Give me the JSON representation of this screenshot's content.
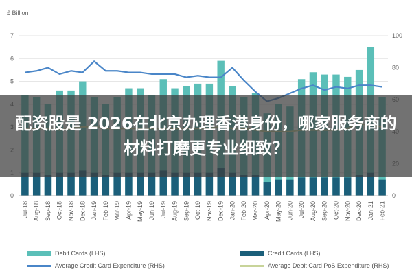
{
  "banner": {
    "text": "配资股是 2026在北京办理香港身份，哪家服务商的材料打磨更专业细致？"
  },
  "chart_data": {
    "type": "bar",
    "ylabel": "£ Billion",
    "ylim": [
      0,
      7
    ],
    "y2lim": [
      0,
      100
    ],
    "yticks": [
      0,
      1,
      2,
      3,
      4,
      5,
      6,
      7
    ],
    "y2ticks": [
      0,
      20,
      40,
      60,
      80,
      100
    ],
    "categories": [
      "Jul-18",
      "Aug-18",
      "Sep-18",
      "Oct-18",
      "Nov-18",
      "Dec-18",
      "Jan-19",
      "Feb-19",
      "Mar-19",
      "Apr-19",
      "May-19",
      "Jun-19",
      "Jul-19",
      "Aug-19",
      "Sep-19",
      "Oct-19",
      "Nov-19",
      "Dec-19",
      "Jan-20",
      "Feb-20",
      "Mar-20",
      "Apr-20",
      "May-20",
      "Jun-20",
      "Jul-20",
      "Aug-20",
      "Sep-20",
      "Oct-20",
      "Nov-20",
      "Dec-20",
      "Jan-21",
      "Feb-21"
    ],
    "tick_labels": [
      "Jul-18",
      "Aug-18",
      "Sep-18",
      "Oct-18",
      "Nov-18",
      "Dec-18",
      "Jan-19",
      "Feb-19",
      "Mar-19",
      "Apr-19",
      "May-19",
      "Jun-19",
      "Jul-19",
      "Aug-19",
      "Sep-19",
      "Oct-19",
      "Nov-19",
      "Dec-19",
      "Jan-20",
      "Feb-20",
      "Mar-20",
      "Apr-20",
      "May-20",
      "Jun-20",
      "Jul-20",
      "Aug-20",
      "Sep-20",
      "Oct-20",
      "Nov-20",
      "Dec-20",
      "Jan-21",
      "Feb-21"
    ],
    "legend_position": "bottom",
    "series": [
      {
        "name": "Debit Cards (LHS)",
        "kind": "bar",
        "axis": "left",
        "color": "#5bbfb8",
        "values": [
          4.4,
          4.3,
          4.0,
          4.6,
          4.6,
          5.0,
          4.3,
          4.0,
          4.3,
          4.7,
          4.7,
          4.4,
          5.1,
          4.7,
          4.8,
          4.9,
          4.9,
          5.9,
          4.8,
          4.3,
          4.5,
          3.6,
          4.0,
          3.9,
          5.1,
          5.4,
          5.3,
          5.3,
          5.2,
          5.5,
          6.5,
          4.3
        ]
      },
      {
        "name": "Credit Cards (LHS)",
        "kind": "bar",
        "axis": "left",
        "color": "#1b5f7a",
        "values": [
          1.0,
          1.0,
          0.9,
          1.0,
          1.0,
          1.1,
          1.0,
          0.9,
          1.0,
          1.0,
          1.0,
          1.0,
          1.1,
          1.0,
          1.0,
          1.0,
          1.0,
          1.2,
          1.0,
          0.9,
          0.9,
          0.6,
          0.7,
          0.7,
          0.8,
          0.8,
          0.8,
          0.8,
          0.8,
          0.9,
          1.0,
          0.7
        ]
      },
      {
        "name": "Average Credit Card Expenditure (RHS)",
        "kind": "line",
        "axis": "right",
        "color": "#4a86c8",
        "values": [
          77,
          78,
          80,
          76,
          78,
          77,
          84,
          78,
          78,
          77,
          77,
          76,
          76,
          76,
          74,
          75,
          74,
          74,
          80,
          72,
          65,
          59,
          61,
          64,
          67,
          69,
          66,
          68,
          67,
          69,
          69,
          68
        ]
      },
      {
        "name": "Average Debit Card PoS Expenditure (RHS)",
        "kind": "line",
        "axis": "right",
        "color": "#c8d49a",
        "values": [
          42,
          42,
          42,
          41,
          42,
          43,
          43,
          42,
          42,
          42,
          42,
          42,
          42,
          42,
          42,
          42,
          42,
          43,
          42,
          42,
          41,
          40,
          40,
          40,
          41,
          41,
          41,
          41,
          42,
          45,
          44,
          43
        ]
      }
    ]
  }
}
